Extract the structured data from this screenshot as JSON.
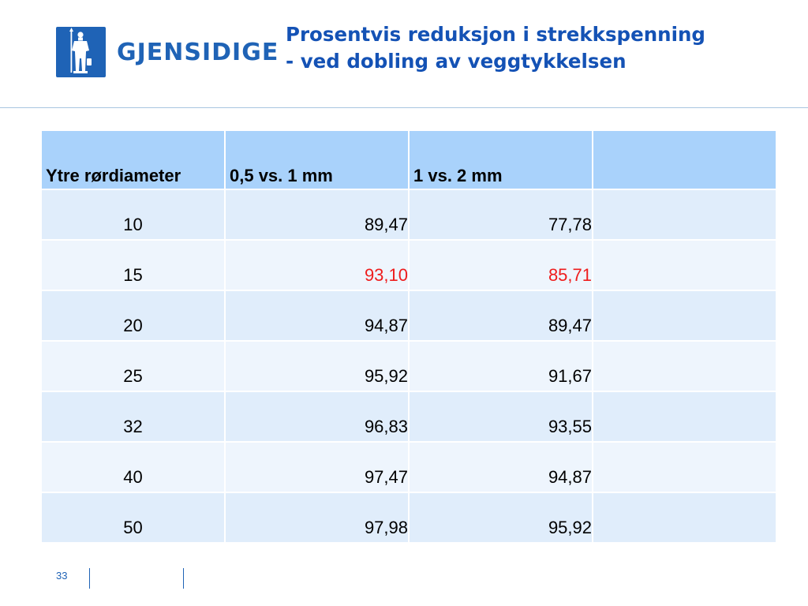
{
  "brand": {
    "name": "GJENSIDIGE"
  },
  "title": {
    "line1": "Prosentvis reduksjon i strekkspenning",
    "line2": "- ved dobling av veggtykkelsen"
  },
  "table": {
    "headers": [
      "Ytre rørdiameter",
      "0,5 vs. 1 mm",
      "1 vs. 2 mm",
      ""
    ],
    "rows": [
      [
        "10",
        "89,47",
        "77,78",
        ""
      ],
      [
        "15",
        "93,10",
        "85,71",
        ""
      ],
      [
        "20",
        "94,87",
        "89,47",
        ""
      ],
      [
        "25",
        "95,92",
        "91,67",
        ""
      ],
      [
        "32",
        "96,83",
        "93,55",
        ""
      ],
      [
        "40",
        "97,47",
        "94,87",
        ""
      ],
      [
        "50",
        "97,98",
        "95,92",
        ""
      ]
    ],
    "highlight_row": 1,
    "highlight_color": "#ee1c1c"
  },
  "footer": {
    "page_number": "33"
  },
  "colors": {
    "brand_blue": "#1f63b6",
    "title_blue": "#1452b5",
    "header_fill": "#a9d2fb",
    "row_fill_dark": "#e0edfb",
    "row_fill_light": "#eef5fd"
  }
}
